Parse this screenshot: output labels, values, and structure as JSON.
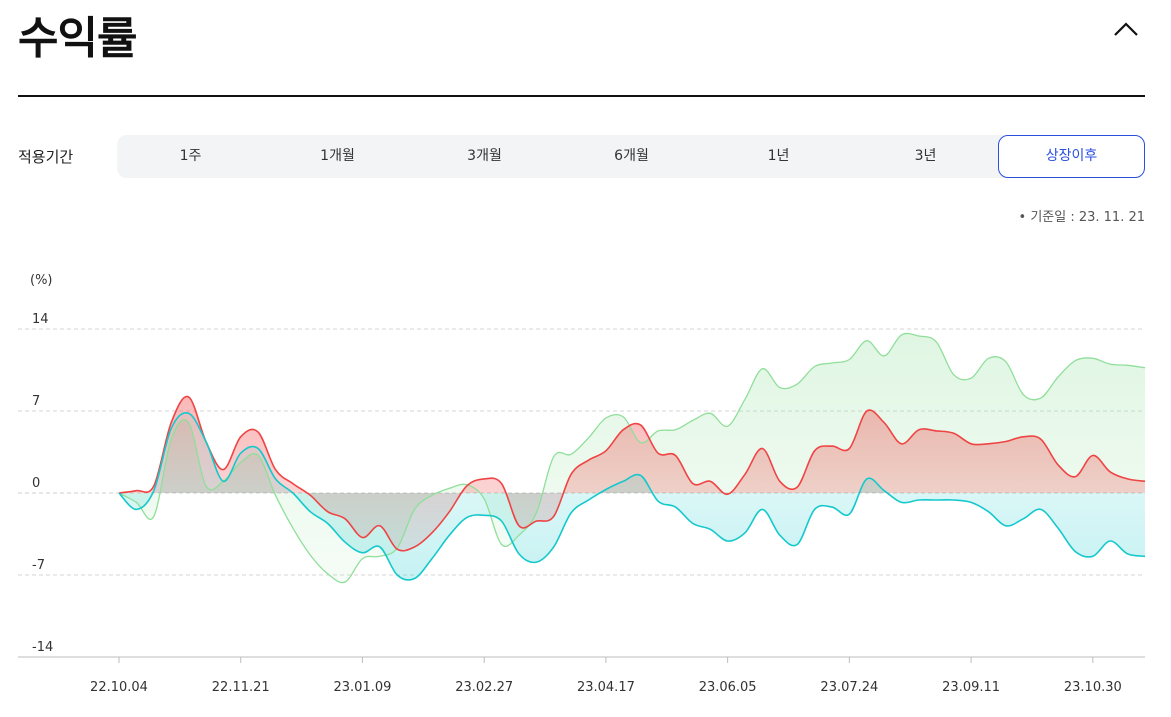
{
  "header": {
    "title": "수익률",
    "collapse_icon": "chevron-up-icon"
  },
  "period": {
    "label": "적용기간",
    "tabs": [
      "1주",
      "1개월",
      "3개월",
      "6개월",
      "1년",
      "3년",
      "상장이후"
    ],
    "active": "상장이후"
  },
  "basis_date": "• 기준일 : 23. 11. 21",
  "colors": {
    "red": "#ef4444",
    "cyan": "#14c8cc",
    "green": "#8fdf9a",
    "accent": "#2a4fe0"
  },
  "chart_data": {
    "type": "area",
    "unit_label": "(%)",
    "ylim": [
      -14,
      14
    ],
    "y_ticks": [
      14,
      7,
      0,
      -7,
      -14
    ],
    "x_tick_labels": [
      "22.10.04",
      "22.11.21",
      "23.01.09",
      "23.02.27",
      "23.04.17",
      "23.06.05",
      "23.07.24",
      "23.09.11",
      "23.10.30"
    ],
    "x_tick_positions": [
      0,
      7,
      14,
      21,
      28,
      35,
      42,
      49,
      56
    ],
    "x_max": 59,
    "grid": "dashed horizontal",
    "series": [
      {
        "color": "red",
        "values": [
          0,
          0.2,
          0.6,
          6,
          8.2,
          4.4,
          2,
          4.8,
          5.2,
          2,
          0.8,
          -0.2,
          -1.6,
          -2.2,
          -3.8,
          -2.8,
          -4.8,
          -4.6,
          -3.4,
          -1.6,
          0.6,
          1.2,
          0.8,
          -2.8,
          -2.4,
          -2,
          1.6,
          2.8,
          3.6,
          5.4,
          5.8,
          3.4,
          3.2,
          0.8,
          1,
          -0.1,
          1.6,
          3.8,
          1,
          0.5,
          3.6,
          4,
          3.8,
          7,
          6,
          4.2,
          5.4,
          5.3,
          5.1,
          4.2,
          4.2,
          4.4,
          4.8,
          4.6,
          2.4,
          1.4,
          3.2,
          1.8,
          1.2,
          1
        ]
      },
      {
        "color": "cyan",
        "values": [
          0,
          -1.4,
          0.2,
          5.5,
          6.8,
          4.4,
          1,
          3.4,
          3.8,
          1.2,
          0,
          -1.6,
          -2.6,
          -4.2,
          -5.1,
          -4.6,
          -7,
          -7.3,
          -5.6,
          -3.6,
          -2.1,
          -1.9,
          -2.4,
          -5.2,
          -5.9,
          -4.6,
          -1.7,
          -0.6,
          0.3,
          1,
          1.5,
          -0.7,
          -1.2,
          -2.6,
          -3.1,
          -4.1,
          -3.4,
          -1.4,
          -3.6,
          -4.4,
          -1.4,
          -1.2,
          -1.8,
          1.2,
          0.2,
          -0.8,
          -0.6,
          -0.6,
          -0.6,
          -0.8,
          -1.6,
          -2.8,
          -2.2,
          -1.4,
          -3,
          -5,
          -5.4,
          -4.1,
          -5.2,
          -5.4
        ]
      },
      {
        "color": "green",
        "values": [
          0,
          -0.8,
          -2,
          4.6,
          6,
          0.6,
          1,
          2.6,
          3.2,
          -0.2,
          -3,
          -5.3,
          -6.9,
          -7.6,
          -5.6,
          -5.4,
          -4.7,
          -1.4,
          -0.2,
          0.4,
          0.7,
          -0.5,
          -4.4,
          -3.6,
          -1.7,
          3.1,
          3.3,
          4.7,
          6.4,
          6.5,
          4.3,
          5.3,
          5.4,
          6.2,
          6.8,
          5.7,
          8,
          10.6,
          9,
          9.3,
          10.8,
          11.1,
          11.4,
          13,
          11.7,
          13.5,
          13.4,
          12.9,
          10.1,
          9.8,
          11.5,
          11.2,
          8.4,
          8.1,
          9.9,
          11.3,
          11.5,
          11,
          10.9,
          10.7
        ]
      }
    ]
  }
}
